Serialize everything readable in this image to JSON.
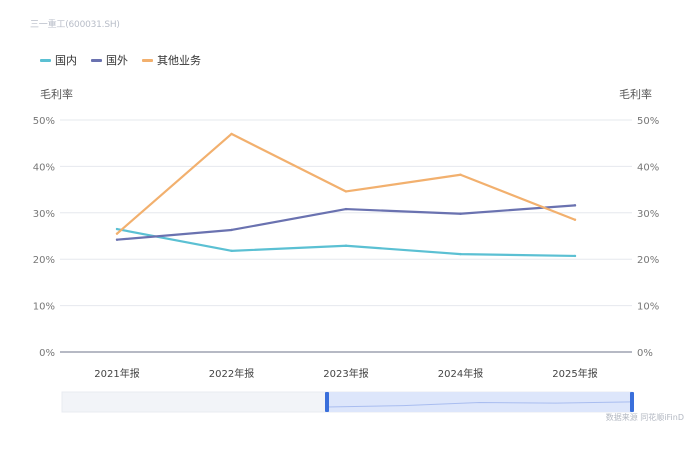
{
  "source_tag": "三一重工(600031.SH)",
  "credit": "数据来源 同花顺iFinD",
  "colors": {
    "domestic": "#5bc0d3",
    "overseas": "#6a72b0",
    "other": "#f2b06e",
    "grid": "#e6e8ee",
    "axis": "#8a8fa0",
    "tick": "#777777",
    "slider_bg": "#f2f4f8",
    "slider_sel": "#dde6fb",
    "slider_handle": "#3a6fdb"
  },
  "chart_data": {
    "type": "line",
    "categories": [
      "2021年报",
      "2022年报",
      "2023年报",
      "2024年报",
      "2025年报"
    ],
    "series": [
      {
        "name": "国内",
        "values": [
          26.5,
          21.8,
          22.9,
          21.1,
          20.7
        ]
      },
      {
        "name": "国外",
        "values": [
          24.2,
          26.3,
          30.8,
          29.8,
          31.6
        ]
      },
      {
        "name": "其他业务",
        "values": [
          25.5,
          47.0,
          34.6,
          38.2,
          28.5
        ]
      }
    ],
    "ylabel": "毛利率",
    "ylabel_right": "毛利率",
    "ylim": [
      0,
      50
    ],
    "yticks": [
      0,
      10,
      20,
      30,
      40,
      50
    ],
    "ytick_labels": [
      "0%",
      "10%",
      "20%",
      "30%",
      "40%",
      "50%"
    ],
    "grid": true,
    "legend": "top-left"
  }
}
